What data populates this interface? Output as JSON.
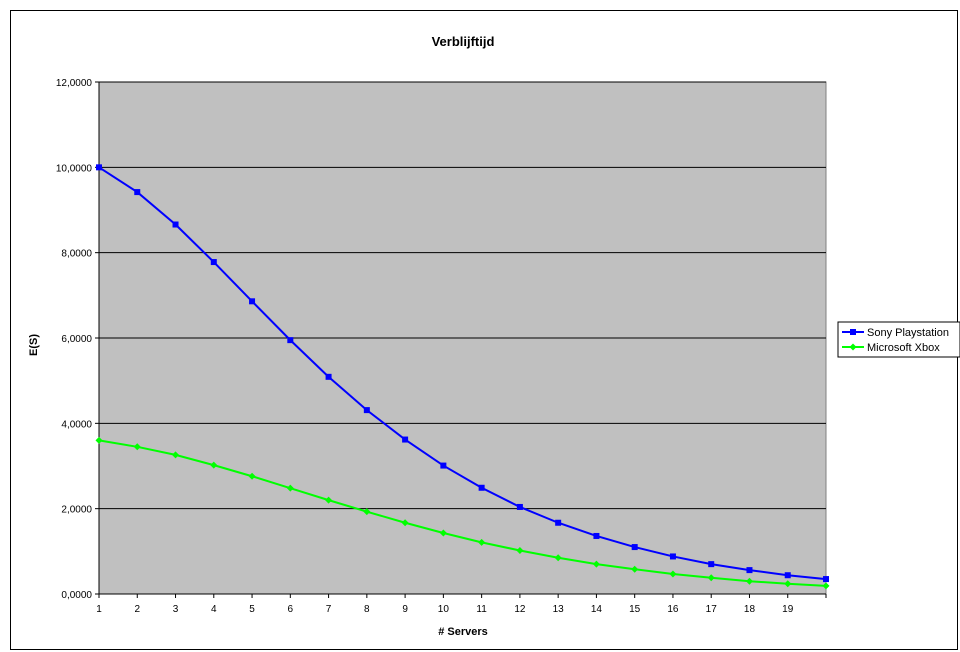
{
  "chart_data": {
    "type": "line",
    "title": "Verblijftijd",
    "xlabel": "# Servers",
    "ylabel": "E(S)",
    "x": [
      1,
      2,
      3,
      4,
      5,
      6,
      7,
      8,
      9,
      10,
      11,
      12,
      13,
      14,
      15,
      16,
      17,
      18,
      19,
      20
    ],
    "x_tick_labels": [
      "1",
      "2",
      "3",
      "4",
      "5",
      "6",
      "7",
      "8",
      "9",
      "10",
      "11",
      "12",
      "13",
      "14",
      "15",
      "16",
      "17",
      "18",
      "19"
    ],
    "ylim": [
      0,
      12
    ],
    "y_tick_labels": [
      "0,0000",
      "2,0000",
      "4,0000",
      "6,0000",
      "8,0000",
      "10,0000",
      "12,0000"
    ],
    "grid": "horizontal",
    "legend_position": "right",
    "plot_background": "#c0c0c0",
    "series": [
      {
        "name": "Sony Playstation",
        "color": "#0000ff",
        "marker": "square",
        "values": [
          10.0,
          9.42,
          8.66,
          7.78,
          6.86,
          5.95,
          5.09,
          4.31,
          3.62,
          3.01,
          2.49,
          2.04,
          1.67,
          1.36,
          1.1,
          0.88,
          0.7,
          0.56,
          0.44,
          0.35
        ]
      },
      {
        "name": "Microsoft Xbox",
        "color": "#00ff00",
        "marker": "diamond",
        "values": [
          3.6,
          3.45,
          3.26,
          3.02,
          2.76,
          2.48,
          2.2,
          1.93,
          1.67,
          1.43,
          1.21,
          1.02,
          0.85,
          0.7,
          0.58,
          0.47,
          0.38,
          0.3,
          0.24,
          0.19
        ]
      }
    ]
  }
}
